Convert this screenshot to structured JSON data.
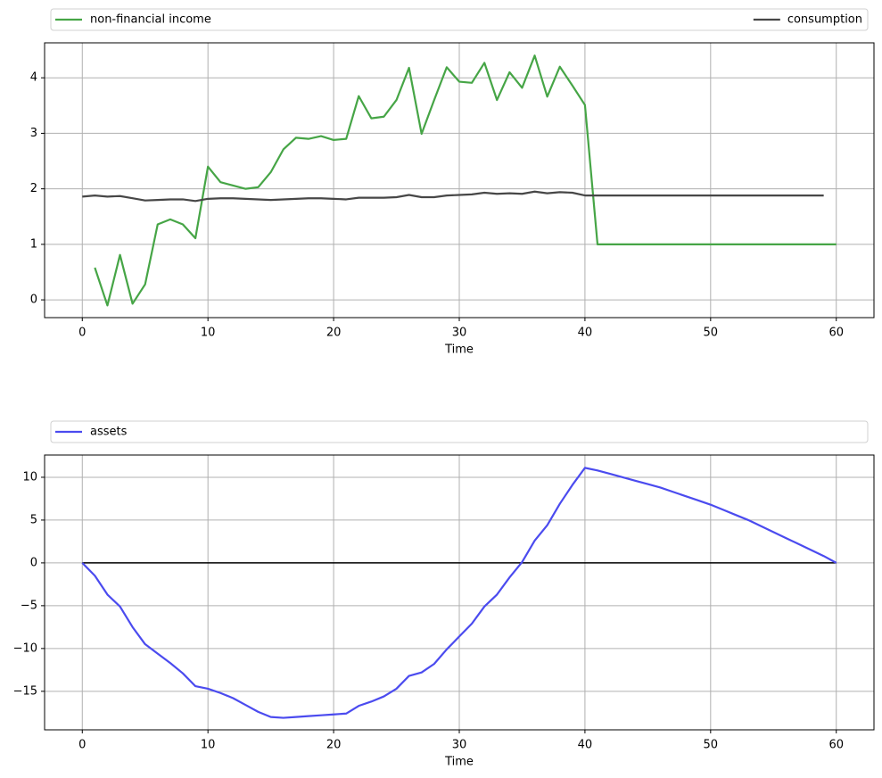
{
  "chart_data": [
    {
      "type": "line",
      "xlabel": "Time",
      "legend": "above",
      "grid": true,
      "x": [
        0,
        1,
        2,
        3,
        4,
        5,
        6,
        7,
        8,
        9,
        10,
        11,
        12,
        13,
        14,
        15,
        16,
        17,
        18,
        19,
        20,
        21,
        22,
        23,
        24,
        25,
        26,
        27,
        28,
        29,
        30,
        31,
        32,
        33,
        34,
        35,
        36,
        37,
        38,
        39,
        40,
        41,
        42,
        43,
        44,
        45,
        46,
        47,
        48,
        49,
        50,
        51,
        52,
        53,
        54,
        55,
        56,
        57,
        58,
        59,
        60
      ],
      "series": [
        {
          "name": "non-financial income",
          "color": "#46a546",
          "values": [
            null,
            0.58,
            -0.1,
            0.81,
            -0.07,
            0.28,
            1.36,
            1.45,
            1.36,
            1.11,
            2.4,
            2.12,
            2.06,
            2.0,
            2.03,
            2.3,
            2.71,
            2.92,
            2.9,
            2.95,
            2.88,
            2.9,
            3.67,
            3.27,
            3.3,
            3.6,
            4.18,
            2.99,
            3.6,
            4.19,
            3.93,
            3.91,
            4.27,
            3.6,
            4.1,
            3.82,
            4.4,
            3.66,
            4.2,
            3.86,
            3.51,
            1.0,
            1.0,
            1.0,
            1.0,
            1.0,
            1.0,
            1.0,
            1.0,
            1.0,
            1.0,
            1.0,
            1.0,
            1.0,
            1.0,
            1.0,
            1.0,
            1.0,
            1.0,
            1.0,
            1.0
          ]
        },
        {
          "name": "consumption",
          "color": "#474747",
          "values": [
            1.86,
            1.88,
            1.86,
            1.87,
            1.83,
            1.79,
            1.8,
            1.81,
            1.81,
            1.78,
            1.82,
            1.83,
            1.83,
            1.82,
            1.81,
            1.8,
            1.81,
            1.82,
            1.83,
            1.83,
            1.82,
            1.81,
            1.84,
            1.84,
            1.84,
            1.85,
            1.89,
            1.85,
            1.85,
            1.88,
            1.89,
            1.9,
            1.93,
            1.91,
            1.92,
            1.91,
            1.95,
            1.92,
            1.94,
            1.93,
            1.88,
            1.88,
            1.88,
            1.88,
            1.88,
            1.88,
            1.88,
            1.88,
            1.88,
            1.88,
            1.88,
            1.88,
            1.88,
            1.88,
            1.88,
            1.88,
            1.88,
            1.88,
            1.88,
            1.88,
            null
          ]
        }
      ],
      "xlim": [
        -3,
        63
      ],
      "ylim": [
        -0.32,
        4.63
      ],
      "xticks": [
        0,
        10,
        20,
        30,
        40,
        50,
        60
      ],
      "yticks": [
        0,
        1,
        2,
        3,
        4
      ]
    },
    {
      "type": "line",
      "xlabel": "Time",
      "legend": "above",
      "grid": true,
      "x": [
        0,
        1,
        2,
        3,
        4,
        5,
        6,
        7,
        8,
        9,
        10,
        11,
        12,
        13,
        14,
        15,
        16,
        17,
        18,
        19,
        20,
        21,
        22,
        23,
        24,
        25,
        26,
        27,
        28,
        29,
        30,
        31,
        32,
        33,
        34,
        35,
        36,
        37,
        38,
        39,
        40,
        41,
        42,
        43,
        44,
        45,
        46,
        47,
        48,
        49,
        50,
        51,
        52,
        53,
        54,
        55,
        56,
        57,
        58,
        59,
        60
      ],
      "series": [
        {
          "name": "assets",
          "color": "#4b4bef",
          "values": [
            0,
            -1.5,
            -3.7,
            -5.1,
            -7.5,
            -9.5,
            -10.6,
            -11.7,
            -12.9,
            -14.4,
            -14.7,
            -15.2,
            -15.8,
            -16.6,
            -17.4,
            -18.0,
            -18.1,
            -18.0,
            -17.9,
            -17.8,
            -17.7,
            -17.6,
            -16.7,
            -16.2,
            -15.6,
            -14.7,
            -13.2,
            -12.8,
            -11.8,
            -10.1,
            -8.6,
            -7.1,
            -5.1,
            -3.7,
            -1.7,
            0.1,
            2.6,
            4.4,
            6.9,
            9.1,
            11.1,
            10.8,
            10.4,
            10.0,
            9.6,
            9.2,
            8.8,
            8.3,
            7.8,
            7.3,
            6.8,
            6.2,
            5.6,
            5.0,
            4.3,
            3.6,
            2.9,
            2.2,
            1.5,
            0.8,
            0.0
          ]
        }
      ],
      "hline": {
        "value": 0,
        "x": [
          0,
          60
        ],
        "color": "#000000"
      },
      "xlim": [
        -3,
        63
      ],
      "ylim": [
        -19.5,
        12.6
      ],
      "xticks": [
        0,
        10,
        20,
        30,
        40,
        50,
        60
      ],
      "yticks": [
        {
          "value": -15,
          "label": "−15"
        },
        {
          "value": -10,
          "label": "−10"
        },
        {
          "value": -5,
          "label": "−5"
        },
        0,
        5,
        10
      ]
    }
  ]
}
